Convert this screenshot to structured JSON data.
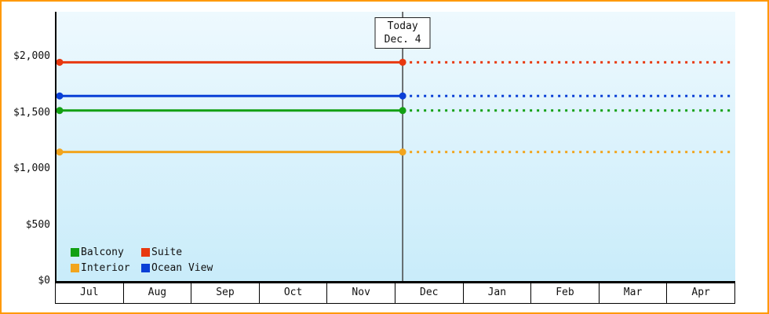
{
  "chart_data": {
    "type": "line",
    "title": "",
    "x_categories": [
      "Jul",
      "Aug",
      "Sep",
      "Oct",
      "Nov",
      "Dec",
      "Jan",
      "Feb",
      "Mar",
      "Apr"
    ],
    "y_ticks": [
      0,
      500,
      1000,
      1500,
      2000
    ],
    "y_tick_labels": [
      "$0",
      "$500",
      "$1,000",
      "$1,500",
      "$2,000"
    ],
    "ylim": [
      0,
      2400
    ],
    "series": [
      {
        "name": "Suite",
        "color": "#e8380f",
        "value": 1950
      },
      {
        "name": "Ocean View",
        "color": "#0a3fd6",
        "value": 1650
      },
      {
        "name": "Balcony",
        "color": "#13a013",
        "value": 1520
      },
      {
        "name": "Interior",
        "color": "#f2a51e",
        "value": 1150
      }
    ],
    "line_pattern": {
      "before_today": "solid",
      "after_today": "dashed"
    },
    "today": {
      "label_line1": "Today",
      "label_line2": "Dec. 4",
      "month_index": 5,
      "month_fraction": 0.1
    },
    "legend_order": [
      "Balcony",
      "Suite",
      "Interior",
      "Ocean View"
    ],
    "frame_border_color": "#ff9900",
    "today_line_color": "#444444"
  }
}
